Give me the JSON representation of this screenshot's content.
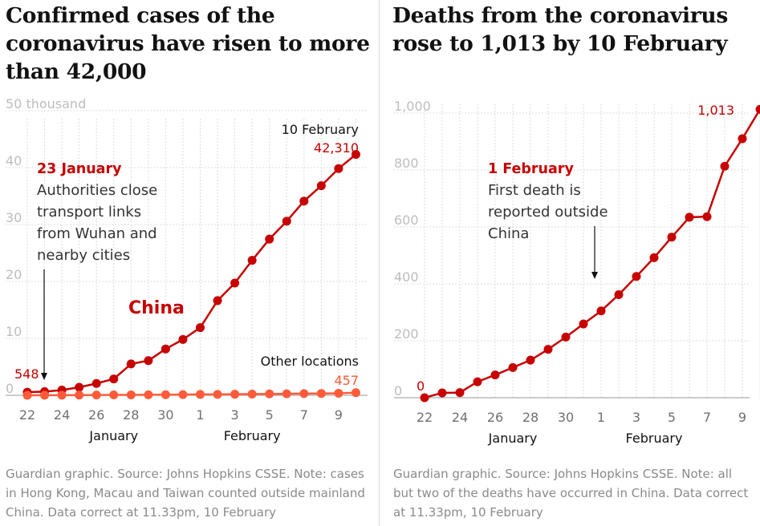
{
  "colors": {
    "china": "#c70000",
    "other": "#ff5b3a",
    "grid": "#dcdcdc",
    "axis_text": "#bdbdbd",
    "text": "#121212",
    "muted": "#8a8a8a"
  },
  "chart_data": [
    {
      "type": "line",
      "title": "Confirmed cases of the coronavirus have risen to more than 42,000",
      "x": [
        "22 Jan",
        "23 Jan",
        "24 Jan",
        "25 Jan",
        "26 Jan",
        "27 Jan",
        "28 Jan",
        "29 Jan",
        "30 Jan",
        "31 Jan",
        "1 Feb",
        "2 Feb",
        "3 Feb",
        "4 Feb",
        "5 Feb",
        "6 Feb",
        "7 Feb",
        "8 Feb",
        "9 Feb",
        "10 Feb"
      ],
      "x_tick_labels": [
        "22",
        "24",
        "26",
        "28",
        "30",
        "1",
        "3",
        "5",
        "7",
        "9"
      ],
      "month_labels": [
        "January",
        "February"
      ],
      "y_tick_labels": [
        "50 thousand",
        "40",
        "30",
        "20",
        "10",
        "0"
      ],
      "ylim": [
        0,
        50000
      ],
      "ylabel": "",
      "grid": true,
      "series": [
        {
          "name": "China",
          "values": [
            548,
            643,
            920,
            1406,
            2075,
            2877,
            5509,
            6087,
            8141,
            9802,
            11891,
            16630,
            19716,
            23707,
            27440,
            30587,
            34110,
            36814,
            39829,
            42310
          ]
        },
        {
          "name": "Other locations",
          "values": [
            7,
            12,
            26,
            38,
            48,
            64,
            78,
            95,
            108,
            123,
            150,
            164,
            186,
            212,
            242,
            268,
            294,
            325,
            359,
            457
          ]
        }
      ],
      "series_label_china": "China",
      "annotations": {
        "event_date": "23 January",
        "event_text": [
          "Authorities close",
          "transport links",
          "from Wuhan and",
          "nearby cities"
        ],
        "start_value_label": "548",
        "end_date_label": "10 February",
        "end_value_label": "42,310",
        "other_label": "Other locations",
        "other_value_label": "457"
      },
      "footnote": "Guardian graphic. Source: Johns Hopkins CSSE. Note: cases in Hong Kong, Macau and Taiwan counted outside mainland China. Data correct at 11.33pm, 10 February"
    },
    {
      "type": "line",
      "title": "Deaths from the coronavirus rose to 1,013 by 10 February",
      "x": [
        "22 Jan",
        "23 Jan",
        "24 Jan",
        "25 Jan",
        "26 Jan",
        "27 Jan",
        "28 Jan",
        "29 Jan",
        "30 Jan",
        "31 Jan",
        "1 Feb",
        "2 Feb",
        "3 Feb",
        "4 Feb",
        "5 Feb",
        "6 Feb",
        "7 Feb",
        "8 Feb",
        "9 Feb",
        "10 Feb"
      ],
      "x_tick_labels": [
        "22",
        "24",
        "26",
        "28",
        "30",
        "1",
        "3",
        "5",
        "7",
        "9"
      ],
      "month_labels": [
        "January",
        "February"
      ],
      "y_tick_labels": [
        "1,000",
        "800",
        "600",
        "400",
        "200",
        "0"
      ],
      "ylim": [
        0,
        1000
      ],
      "ylabel": "",
      "grid": true,
      "series": [
        {
          "name": "",
          "values": [
            0,
            17,
            18,
            56,
            80,
            106,
            132,
            170,
            213,
            259,
            305,
            362,
            426,
            492,
            564,
            634,
            636,
            813,
            910,
            1013
          ]
        }
      ],
      "annotations": {
        "event_date": "1 February",
        "event_text": [
          "First death is",
          "reported outside",
          "China"
        ],
        "start_value_label": "0",
        "end_value_label": "1,013"
      },
      "footnote": "Guardian graphic. Source: Johns Hopkins CSSE. Note: all but two of the deaths have occurred in China. Data correct at 11.33pm, 10 February"
    }
  ]
}
